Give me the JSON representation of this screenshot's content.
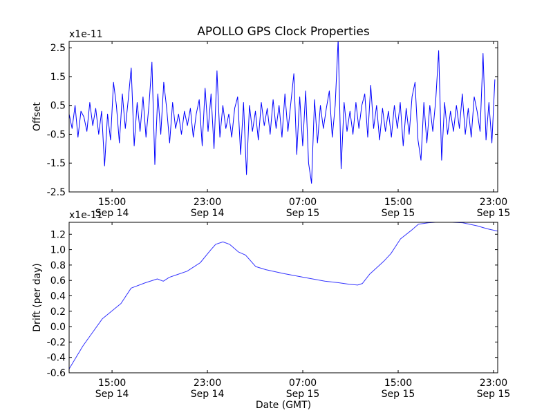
{
  "chart_data": [
    {
      "type": "line",
      "title": "APOLLO GPS Clock Properties",
      "xlabel": "",
      "ylabel": "Offset",
      "offset_text": "x1e-11",
      "x_units": "hours since Sep 14 00:00 GMT",
      "xlim": [
        11.4,
        47.35
      ],
      "ylim": [
        -2.5,
        2.72
      ],
      "yticks": [
        -2.5,
        -1.5,
        -0.5,
        0.5,
        1.5,
        2.5
      ],
      "ytick_labels": [
        "-2.5",
        "-1.5",
        "-0.5",
        "0.5",
        "1.5",
        "2.5"
      ],
      "xticks": [
        15,
        23,
        31,
        39,
        47
      ],
      "xtick_labels": [
        [
          "15:00",
          "Sep 14"
        ],
        [
          "23:00",
          "Sep 14"
        ],
        [
          "07:00",
          "Sep 15"
        ],
        [
          "15:00",
          "Sep 15"
        ],
        [
          "23:00",
          "Sep 15"
        ]
      ],
      "color": "#0000ff",
      "series": [
        {
          "name": "Offset",
          "x_start": 11.4,
          "x_step": 0.248,
          "values": [
            0.2,
            -0.3,
            0.5,
            -0.6,
            0.3,
            0.1,
            -0.4,
            0.6,
            -0.2,
            0.4,
            -0.5,
            0.3,
            -1.6,
            0.2,
            -0.7,
            1.3,
            0.5,
            -0.8,
            0.9,
            -0.3,
            0.7,
            1.8,
            -0.9,
            0.6,
            -0.4,
            0.8,
            -0.6,
            0.5,
            2.0,
            -1.55,
            0.9,
            -0.5,
            1.3,
            0.4,
            -0.8,
            0.6,
            -0.3,
            0.2,
            -0.5,
            0.3,
            -0.2,
            0.4,
            -0.6,
            0.2,
            0.7,
            -0.9,
            1.1,
            -0.4,
            0.9,
            -1.0,
            1.7,
            -0.6,
            0.5,
            -0.3,
            0.2,
            -0.6,
            0.4,
            0.8,
            -1.2,
            0.6,
            -1.9,
            0.5,
            -0.4,
            0.3,
            -0.7,
            0.6,
            -0.2,
            0.4,
            -0.5,
            0.7,
            -0.3,
            0.5,
            -0.6,
            0.9,
            -0.4,
            0.6,
            1.6,
            -1.2,
            0.8,
            -0.9,
            1.0,
            -1.5,
            -2.2,
            0.7,
            -0.8,
            0.5,
            -0.3,
            0.4,
            1.0,
            -0.6,
            0.5,
            2.8,
            -1.7,
            0.6,
            -0.4,
            0.3,
            -0.5,
            0.6,
            -0.3,
            0.5,
            0.9,
            -0.6,
            1.2,
            -0.3,
            0.5,
            -0.7,
            0.4,
            -0.4,
            0.3,
            -0.6,
            0.5,
            -0.3,
            0.6,
            -0.9,
            0.4,
            -0.5,
            0.8,
            1.3,
            -0.7,
            -1.4,
            0.6,
            -0.8,
            0.5,
            -0.4,
            0.7,
            2.4,
            -1.4,
            0.6,
            -0.5,
            0.3,
            -0.4,
            0.5,
            -0.3,
            0.9,
            -0.5,
            0.4,
            -0.6,
            0.8,
            0.3,
            -0.4,
            2.3,
            -0.7,
            0.6,
            -0.8,
            1.4
          ]
        }
      ]
    },
    {
      "type": "line",
      "title": "",
      "xlabel": "Date (GMT)",
      "ylabel": "Drift (per day)",
      "offset_text": "x1e-11",
      "x_units": "hours since Sep 14 00:00 GMT",
      "xlim": [
        11.4,
        47.35
      ],
      "ylim": [
        -0.6,
        1.355
      ],
      "yticks": [
        -0.6,
        -0.4,
        -0.2,
        0.0,
        0.2,
        0.4,
        0.6,
        0.8,
        1.0,
        1.2
      ],
      "ytick_labels": [
        "-0.6",
        "-0.4",
        "-0.2",
        "0.0",
        "0.2",
        "0.4",
        "0.6",
        "0.8",
        "1.0",
        "1.2"
      ],
      "xticks": [
        15,
        23,
        31,
        39,
        47
      ],
      "xtick_labels": [
        [
          "15:00",
          "Sep 14"
        ],
        [
          "23:00",
          "Sep 14"
        ],
        [
          "07:00",
          "Sep 15"
        ],
        [
          "15:00",
          "Sep 15"
        ],
        [
          "23:00",
          "Sep 15"
        ]
      ],
      "color": "#3333ff",
      "series": [
        {
          "name": "Drift",
          "x": [
            11.4,
            12.56,
            14.18,
            15.75,
            16.6,
            17.8,
            18.8,
            19.3,
            19.8,
            21.3,
            22.4,
            23.3,
            23.7,
            24.3,
            24.85,
            25.6,
            26.2,
            27.05,
            27.9,
            29.4,
            31.1,
            32.85,
            34.0,
            34.9,
            35.6,
            36.0,
            36.6,
            37.8,
            38.4,
            39.2,
            40.1,
            40.7,
            41.55,
            42.7,
            44.4,
            45.6,
            46.5,
            47.35
          ],
          "y": [
            -0.55,
            -0.25,
            0.1,
            0.3,
            0.5,
            0.57,
            0.62,
            0.59,
            0.64,
            0.72,
            0.83,
            1.0,
            1.07,
            1.1,
            1.07,
            0.97,
            0.93,
            0.78,
            0.74,
            0.69,
            0.64,
            0.59,
            0.57,
            0.55,
            0.54,
            0.56,
            0.68,
            0.85,
            0.95,
            1.14,
            1.25,
            1.33,
            1.35,
            1.36,
            1.35,
            1.31,
            1.27,
            1.24
          ]
        }
      ]
    }
  ]
}
